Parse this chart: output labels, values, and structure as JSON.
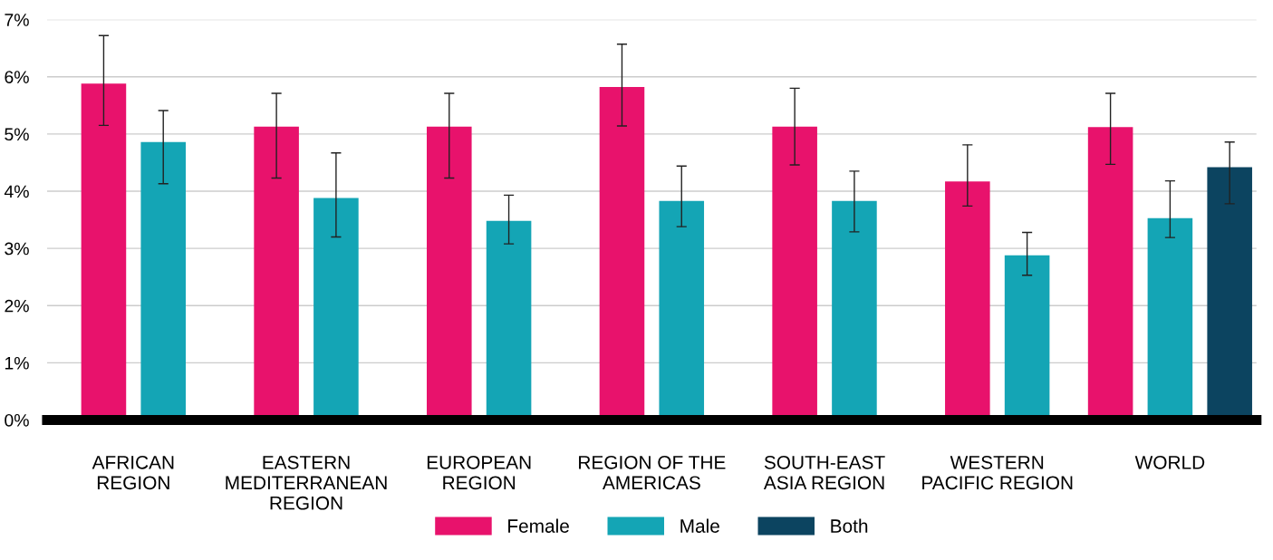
{
  "chart_data": {
    "type": "bar",
    "categories": [
      "AFRICAN\nREGION",
      "EASTERN\nMEDITERRANEAN\nREGION",
      "EUROPEAN\nREGION",
      "REGION OF THE\nAMERICAS",
      "SOUTH-EAST\nASIA REGION",
      "WESTERN\nPACIFIC REGION",
      "WORLD"
    ],
    "series": [
      {
        "name": "Female",
        "color": "#e8126c",
        "values": [
          5.88,
          5.13,
          5.13,
          5.82,
          5.13,
          4.17,
          5.12
        ],
        "errors": [
          [
            5.15,
            6.72
          ],
          [
            4.23,
            5.71
          ],
          [
            4.23,
            5.71
          ],
          [
            5.14,
            6.57
          ],
          [
            4.46,
            5.8
          ],
          [
            3.74,
            4.81
          ],
          [
            4.47,
            5.71
          ]
        ]
      },
      {
        "name": "Male",
        "color": "#14a5b5",
        "values": [
          4.86,
          3.88,
          3.48,
          3.83,
          3.83,
          2.88,
          3.53
        ],
        "errors": [
          [
            4.13,
            5.41
          ],
          [
            3.2,
            4.67
          ],
          [
            3.08,
            3.93
          ],
          [
            3.38,
            4.44
          ],
          [
            3.29,
            4.35
          ],
          [
            2.53,
            3.28
          ],
          [
            3.19,
            4.18
          ]
        ]
      },
      {
        "name": "Both",
        "color": "#0c4460",
        "values": [
          null,
          null,
          null,
          null,
          null,
          null,
          4.42
        ],
        "errors": [
          null,
          null,
          null,
          null,
          null,
          null,
          [
            3.78,
            4.86
          ]
        ]
      }
    ],
    "ylim": [
      0,
      7
    ],
    "yticks": [
      {
        "value": 0,
        "label": "0%"
      },
      {
        "value": 1,
        "label": "1%"
      },
      {
        "value": 2,
        "label": "2%"
      },
      {
        "value": 3,
        "label": "3%"
      },
      {
        "value": 4,
        "label": "4%"
      },
      {
        "value": 5,
        "label": "5%"
      },
      {
        "value": 6,
        "label": "6%"
      },
      {
        "value": 7,
        "label": "7%"
      }
    ],
    "grid": "y",
    "legend": "bottom"
  }
}
